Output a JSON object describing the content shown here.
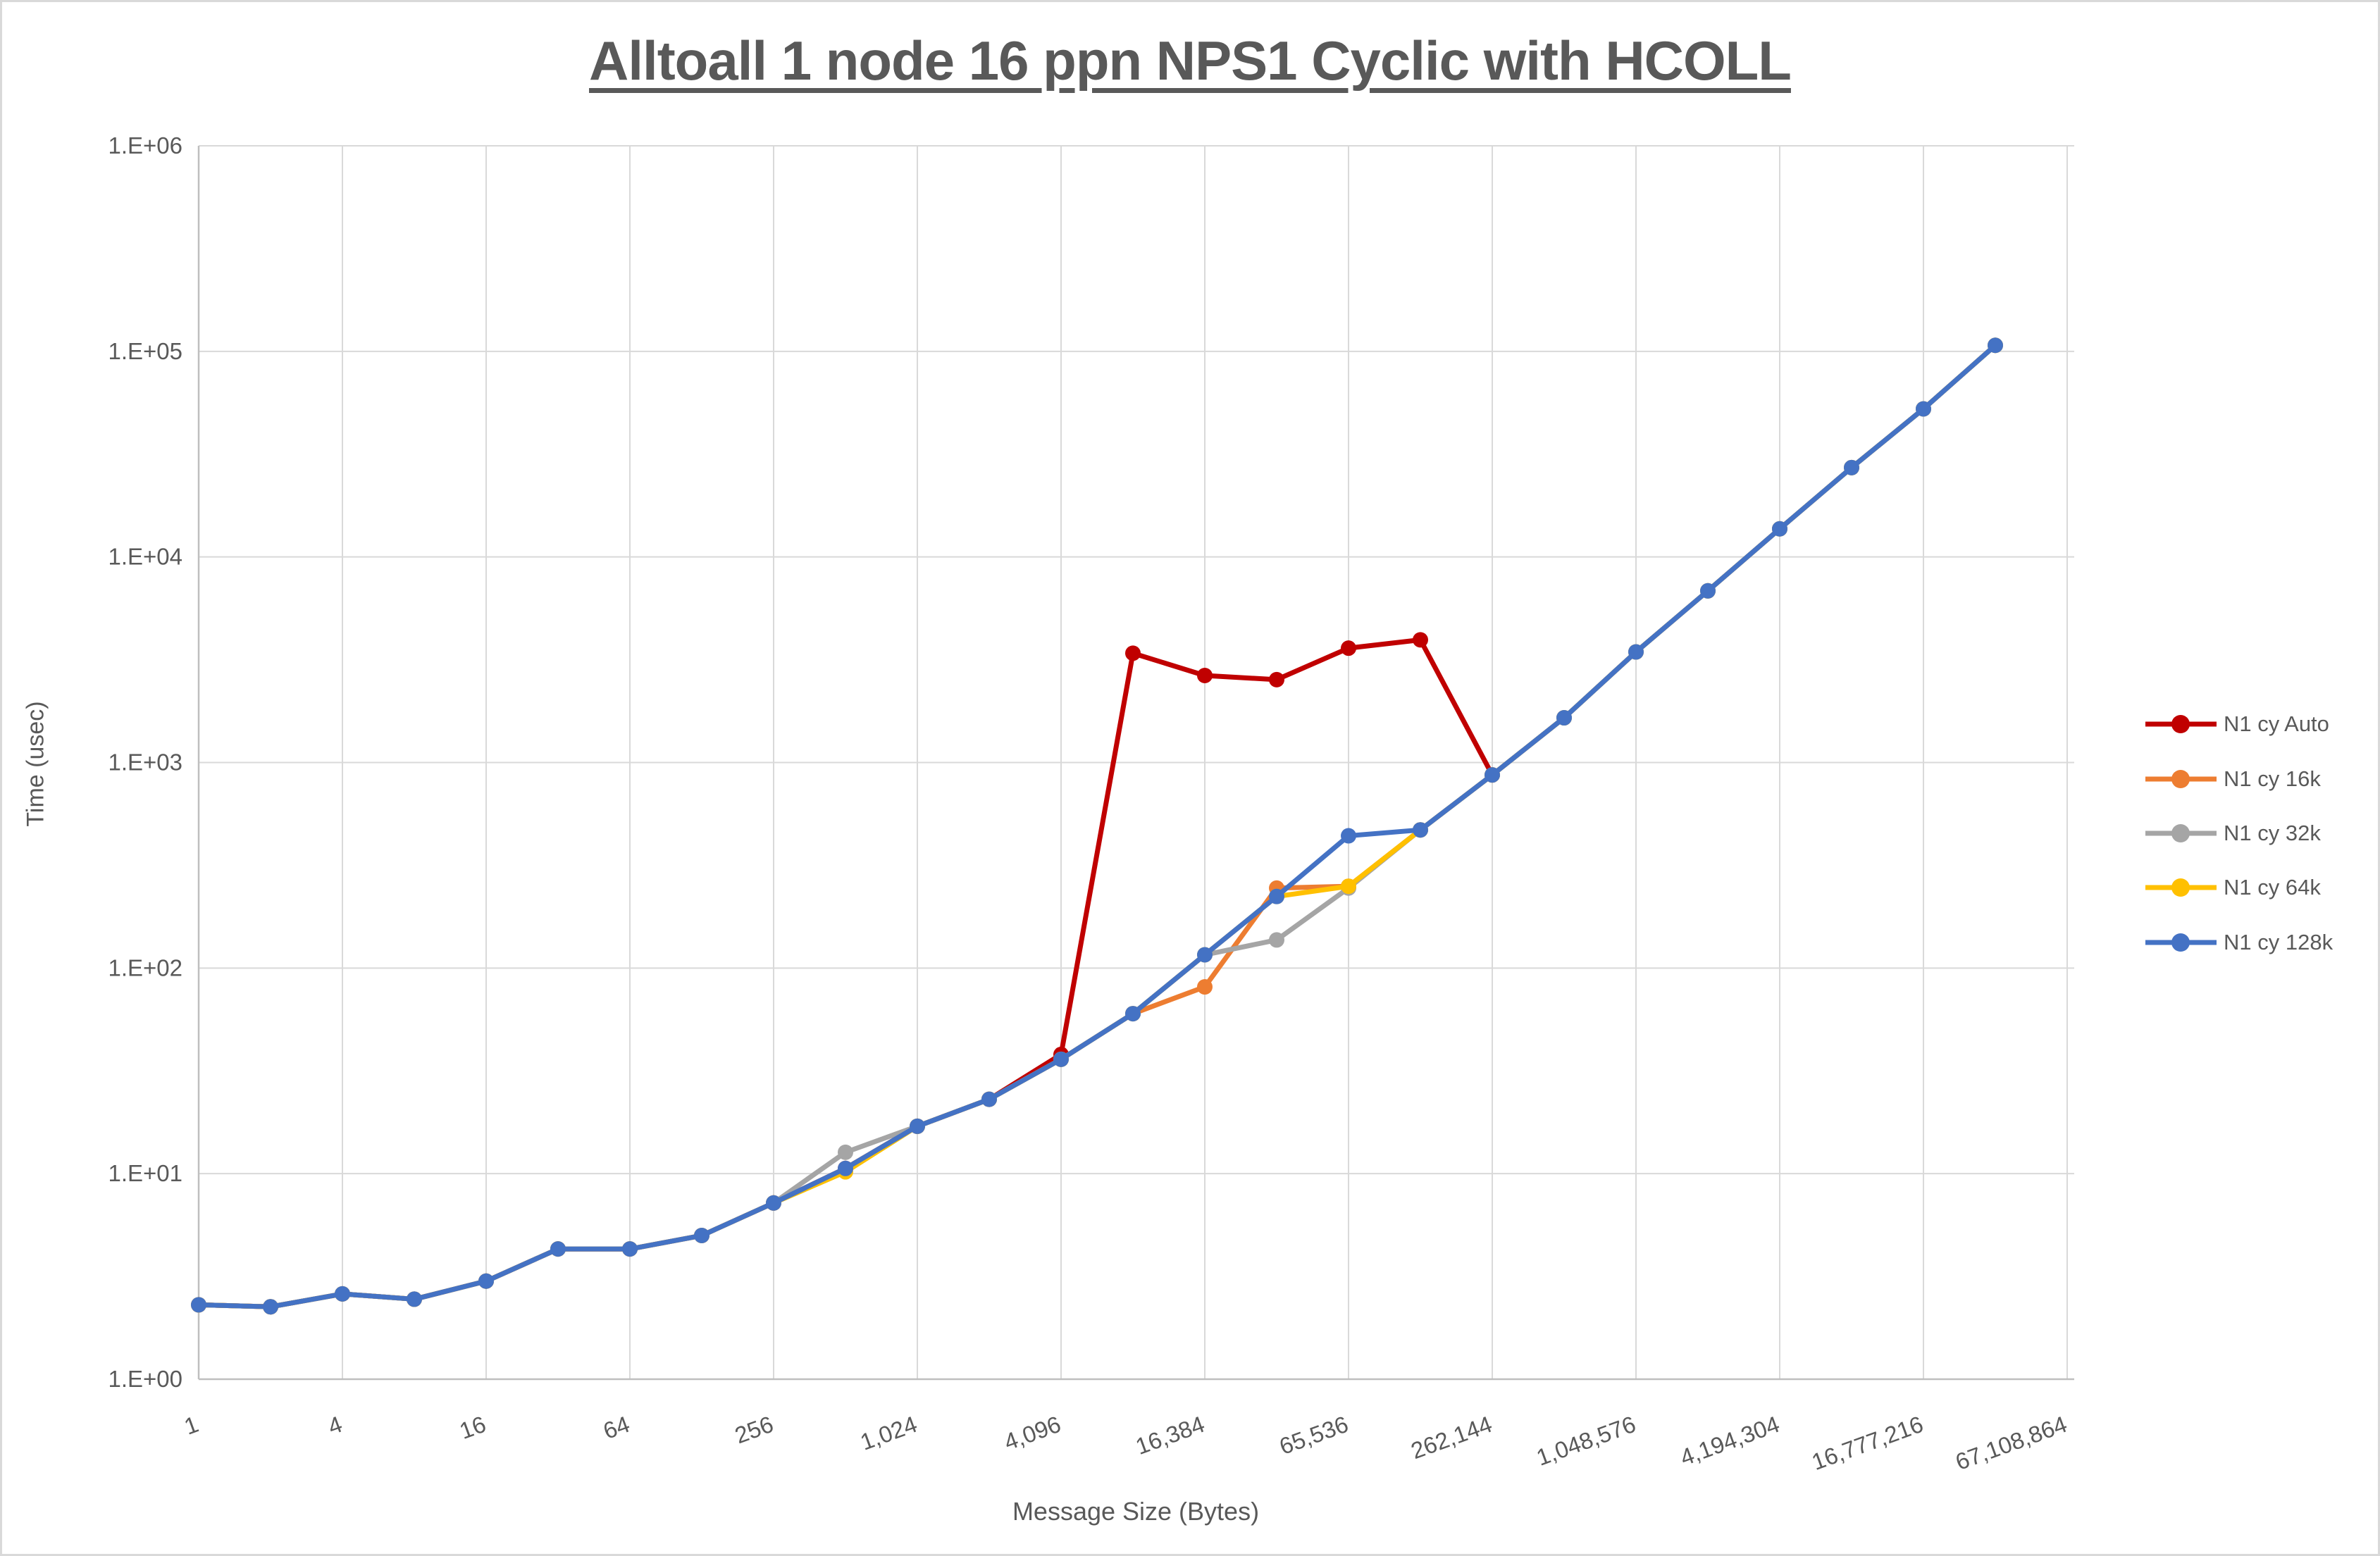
{
  "chart_data": {
    "type": "line",
    "title": "Alltoall 1 node 16 ppn NPS1 Cyclic with HCOLL",
    "xlabel": "Message Size (Bytes)",
    "ylabel": "Time (usec)",
    "x_scale": "log2",
    "y_scale": "log10",
    "xlim": [
      1,
      67108864
    ],
    "ylim": [
      1,
      1000000
    ],
    "grid": true,
    "legend_position": "right",
    "text_color": "#595959",
    "grid_color": "#D9D9D9",
    "axis_color": "#BFBFBF",
    "x_tick_values": [
      1,
      4,
      16,
      64,
      256,
      1024,
      4096,
      16384,
      65536,
      262144,
      1048576,
      4194304,
      16777216,
      67108864
    ],
    "x_tick_labels": [
      "1",
      "4",
      "16",
      "64",
      "256",
      "1,024",
      "4,096",
      "16,384",
      "65,536",
      "262,144",
      "1,048,576",
      "4,194,304",
      "16,777,216",
      "67,108,864"
    ],
    "y_tick_values": [
      1,
      10,
      100,
      1000,
      10000,
      100000,
      1000000
    ],
    "y_tick_labels": [
      "1.E+00",
      "1.E+01",
      "1.E+02",
      "1.E+03",
      "1.E+04",
      "1.E+05",
      "1.E+06"
    ],
    "series": [
      {
        "name": "N1 cy Auto",
        "color": "#C00000",
        "points": [
          [
            1,
            2.3
          ],
          [
            2,
            2.25
          ],
          [
            4,
            2.6
          ],
          [
            8,
            2.45
          ],
          [
            16,
            3.0
          ],
          [
            32,
            4.3
          ],
          [
            64,
            4.3
          ],
          [
            128,
            5.0
          ],
          [
            256,
            7.2
          ],
          [
            512,
            10.6
          ],
          [
            1024,
            17
          ],
          [
            2048,
            23
          ],
          [
            4096,
            38
          ],
          [
            8192,
            3400
          ],
          [
            16384,
            2650
          ],
          [
            32768,
            2530
          ],
          [
            65536,
            3600
          ],
          [
            131072,
            3950
          ],
          [
            262144,
            870
          ]
        ]
      },
      {
        "name": "N1 cy 16k",
        "color": "#ED7D31",
        "points": [
          [
            1,
            2.3
          ],
          [
            2,
            2.25
          ],
          [
            4,
            2.6
          ],
          [
            8,
            2.45
          ],
          [
            16,
            3.0
          ],
          [
            32,
            4.3
          ],
          [
            64,
            4.3
          ],
          [
            128,
            5.0
          ],
          [
            256,
            7.2
          ],
          [
            512,
            10.6
          ],
          [
            1024,
            17
          ],
          [
            2048,
            23
          ],
          [
            4096,
            36
          ],
          [
            8192,
            60
          ],
          [
            16384,
            81
          ],
          [
            32768,
            245
          ],
          [
            65536,
            250
          ],
          [
            131072,
            470
          ],
          [
            262144,
            870
          ],
          [
            524288,
            1650
          ],
          [
            1048576,
            3450
          ],
          [
            2097152,
            6840
          ],
          [
            4194304,
            13700
          ],
          [
            8388608,
            27200
          ],
          [
            16777216,
            52500
          ],
          [
            33554432,
            107000
          ]
        ]
      },
      {
        "name": "N1 cy 32k",
        "color": "#A5A5A5",
        "points": [
          [
            1,
            2.3
          ],
          [
            2,
            2.25
          ],
          [
            4,
            2.6
          ],
          [
            8,
            2.45
          ],
          [
            16,
            3.0
          ],
          [
            32,
            4.3
          ],
          [
            64,
            4.3
          ],
          [
            128,
            5.0
          ],
          [
            256,
            7.2
          ],
          [
            512,
            12.7
          ],
          [
            1024,
            17
          ],
          [
            2048,
            23
          ],
          [
            4096,
            36
          ],
          [
            8192,
            60
          ],
          [
            16384,
            116
          ],
          [
            32768,
            137
          ],
          [
            65536,
            245
          ],
          [
            131072,
            470
          ],
          [
            262144,
            870
          ],
          [
            524288,
            1650
          ],
          [
            1048576,
            3450
          ],
          [
            2097152,
            6840
          ],
          [
            4194304,
            13700
          ],
          [
            8388608,
            27200
          ],
          [
            16777216,
            52500
          ],
          [
            33554432,
            107000
          ]
        ]
      },
      {
        "name": "N1 cy 64k",
        "color": "#FFC000",
        "points": [
          [
            1,
            2.3
          ],
          [
            2,
            2.25
          ],
          [
            4,
            2.6
          ],
          [
            8,
            2.45
          ],
          [
            16,
            3.0
          ],
          [
            32,
            4.3
          ],
          [
            64,
            4.3
          ],
          [
            128,
            5.0
          ],
          [
            256,
            7.2
          ],
          [
            512,
            10.2
          ],
          [
            1024,
            17
          ],
          [
            2048,
            23
          ],
          [
            4096,
            36
          ],
          [
            8192,
            60
          ],
          [
            16384,
            116
          ],
          [
            32768,
            223
          ],
          [
            65536,
            250
          ],
          [
            131072,
            470
          ],
          [
            262144,
            870
          ],
          [
            524288,
            1650
          ],
          [
            1048576,
            3450
          ],
          [
            2097152,
            6840
          ],
          [
            4194304,
            13700
          ],
          [
            8388608,
            27200
          ],
          [
            16777216,
            52500
          ],
          [
            33554432,
            107000
          ]
        ]
      },
      {
        "name": "N1 cy 128k",
        "color": "#4472C4",
        "points": [
          [
            1,
            2.3
          ],
          [
            2,
            2.25
          ],
          [
            4,
            2.6
          ],
          [
            8,
            2.45
          ],
          [
            16,
            3.0
          ],
          [
            32,
            4.3
          ],
          [
            64,
            4.3
          ],
          [
            128,
            5.0
          ],
          [
            256,
            7.2
          ],
          [
            512,
            10.6
          ],
          [
            1024,
            17
          ],
          [
            2048,
            23
          ],
          [
            4096,
            36
          ],
          [
            8192,
            60
          ],
          [
            16384,
            116
          ],
          [
            32768,
            223
          ],
          [
            65536,
            440
          ],
          [
            131072,
            470
          ],
          [
            262144,
            870
          ],
          [
            524288,
            1650
          ],
          [
            1048576,
            3450
          ],
          [
            2097152,
            6840
          ],
          [
            4194304,
            13700
          ],
          [
            8388608,
            27200
          ],
          [
            16777216,
            52500
          ],
          [
            33554432,
            107000
          ]
        ]
      }
    ]
  }
}
